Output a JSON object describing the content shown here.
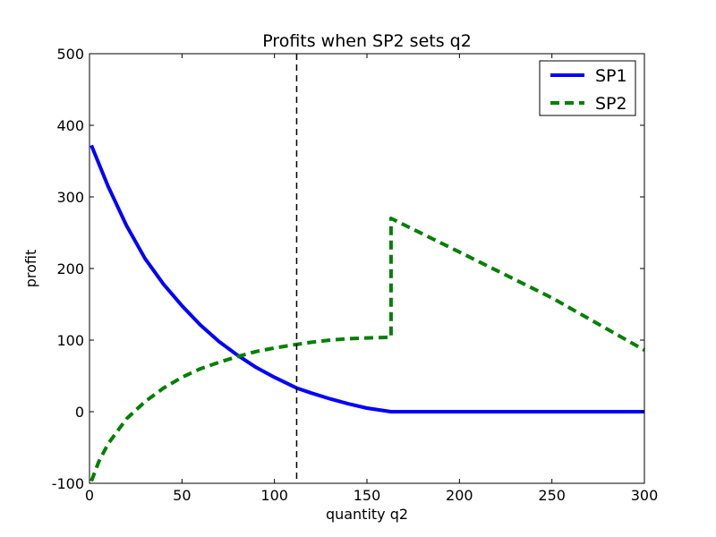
{
  "chart_data": {
    "type": "line",
    "title": "Profits when SP2 sets q2",
    "xlabel": "quantity q2",
    "ylabel": "profit",
    "xlim": [
      0,
      300
    ],
    "ylim": [
      -100,
      500
    ],
    "xticks": [
      0,
      50,
      100,
      150,
      200,
      250,
      300
    ],
    "yticks": [
      -100,
      0,
      100,
      200,
      300,
      400,
      500
    ],
    "grid": false,
    "legend_position": "top-right",
    "reference_line": {
      "x": 112,
      "style": "dashed",
      "color": "#000000"
    },
    "series": [
      {
        "name": "SP1",
        "color": "#0000ff",
        "style": "solid",
        "x": [
          1,
          10,
          20,
          30,
          40,
          50,
          60,
          70,
          80,
          90,
          100,
          112,
          120,
          130,
          140,
          150,
          163,
          170,
          200,
          250,
          300
        ],
        "y": [
          372,
          315,
          260,
          214,
          178,
          148,
          121,
          98,
          79,
          62,
          48,
          33,
          26,
          18,
          11,
          5,
          0,
          0,
          0,
          0,
          0
        ]
      },
      {
        "name": "SP2",
        "color": "#008000",
        "style": "dashed",
        "x": [
          1,
          5,
          10,
          20,
          30,
          40,
          50,
          60,
          70,
          80,
          90,
          100,
          112,
          120,
          130,
          140,
          150,
          163,
          163,
          200,
          250,
          300
        ],
        "y": [
          -97,
          -70,
          -45,
          -10,
          14,
          33,
          48,
          60,
          69,
          77,
          84,
          89,
          94,
          97,
          100,
          102,
          103,
          104,
          270,
          223,
          159,
          86
        ]
      }
    ]
  }
}
